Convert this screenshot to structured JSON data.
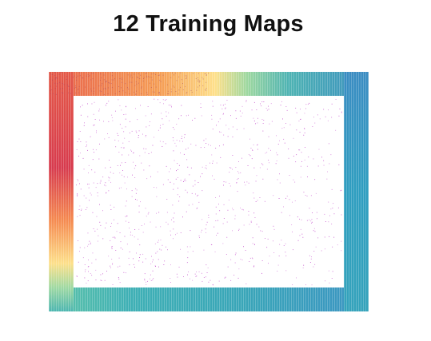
{
  "title": "12 Training Maps",
  "figure": {
    "description_colormap": "spectral",
    "border_gradient": {
      "left_top": "#e7584d",
      "left_mid": "#d53e4f",
      "bottom_left": "#3ea8b8",
      "top_mid_yellow": "#fee08b",
      "top_green": "#abdda4",
      "right": "#3288bd"
    },
    "inner_background": "#ffffff",
    "dot_color": "#c040c8"
  }
}
